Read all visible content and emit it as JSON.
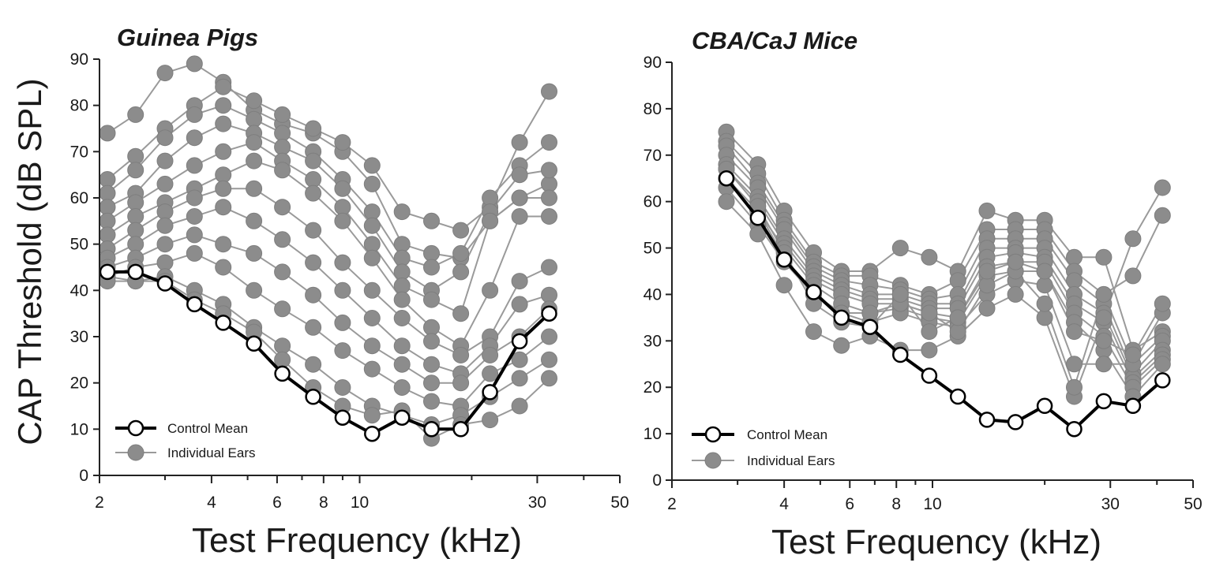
{
  "chart_data": [
    {
      "type": "line",
      "title": "Guinea Pigs",
      "xlabel": "Test Frequency (kHz)",
      "ylabel": "CAP Threshold (dB SPL)",
      "x_scale": "log",
      "xlim": [
        2,
        50
      ],
      "ylim": [
        0,
        90
      ],
      "xticks": [
        2,
        4,
        6,
        8,
        10,
        30,
        50
      ],
      "yticks": [
        0,
        10,
        20,
        30,
        40,
        50,
        60,
        70,
        80,
        90
      ],
      "grid": false,
      "legend_position": "bottom-left",
      "colors": {
        "mean": "#000000",
        "individual": "#8c8c8c",
        "individual_line": "#9a9a9a"
      },
      "legend": [
        {
          "label": "Control Mean",
          "series": "mean"
        },
        {
          "label": "Individual Ears",
          "series": "individual"
        }
      ],
      "x": [
        2.1,
        2.5,
        3.0,
        3.6,
        4.3,
        5.2,
        6.2,
        7.5,
        9.0,
        10.8,
        13.0,
        15.6,
        18.7,
        22.4,
        26.9,
        32.3
      ],
      "series": [
        {
          "id": "mean",
          "values": [
            44,
            44,
            41.5,
            37,
            33,
            28.5,
            22,
            17,
            12.5,
            9,
            12.5,
            10,
            10,
            18,
            29,
            35
          ]
        },
        {
          "id": "ind1",
          "values": [
            74,
            78,
            87,
            89,
            85,
            79,
            76,
            74,
            70,
            63,
            50,
            48,
            47,
            55,
            60,
            63
          ]
        },
        {
          "id": "ind2",
          "values": [
            64,
            69,
            75,
            80,
            84,
            81,
            78,
            75,
            72,
            67,
            57,
            55,
            53,
            58,
            72,
            83
          ]
        },
        {
          "id": "ind3",
          "values": [
            61,
            66,
            73,
            78,
            80,
            77,
            74,
            70,
            64,
            57,
            47,
            45,
            48,
            60,
            67,
            72
          ]
        },
        {
          "id": "ind4",
          "values": [
            58,
            61,
            68,
            73,
            76,
            74,
            71,
            68,
            62,
            54,
            44,
            40,
            44,
            57,
            65,
            66
          ]
        },
        {
          "id": "ind5",
          "values": [
            55,
            59,
            63,
            67,
            70,
            72,
            68,
            64,
            58,
            50,
            41,
            38,
            35,
            55,
            60,
            60
          ]
        },
        {
          "id": "ind6",
          "values": [
            52,
            56,
            59,
            62,
            65,
            68,
            66,
            61,
            55,
            47,
            38,
            32,
            28,
            40,
            56,
            56
          ]
        },
        {
          "id": "ind7",
          "values": [
            49,
            53,
            57,
            60,
            62,
            62,
            58,
            53,
            46,
            40,
            34,
            29,
            26,
            30,
            42,
            45
          ]
        },
        {
          "id": "ind8",
          "values": [
            47,
            50,
            54,
            56,
            58,
            55,
            51,
            46,
            40,
            34,
            28,
            24,
            22,
            28,
            37,
            39
          ]
        },
        {
          "id": "ind9",
          "values": [
            45,
            47,
            50,
            52,
            50,
            48,
            44,
            39,
            33,
            28,
            24,
            20,
            20,
            26,
            30,
            36
          ]
        },
        {
          "id": "ind10",
          "values": [
            43,
            45,
            46,
            48,
            45,
            40,
            36,
            32,
            27,
            23,
            19,
            16,
            15,
            22,
            25,
            30
          ]
        },
        {
          "id": "ind11",
          "values": [
            43,
            42,
            43,
            40,
            37,
            32,
            28,
            24,
            19,
            15,
            13,
            11,
            13,
            17,
            21,
            25
          ]
        },
        {
          "id": "ind12",
          "values": [
            42,
            42,
            42,
            38,
            35,
            31,
            25,
            19,
            15,
            13,
            14,
            8,
            11,
            12,
            15,
            21
          ]
        }
      ]
    },
    {
      "type": "line",
      "title": "CBA/CaJ Mice",
      "xlabel": "Test Frequency (kHz)",
      "ylabel": "",
      "x_scale": "log",
      "xlim": [
        2,
        50
      ],
      "ylim": [
        0,
        90
      ],
      "xticks": [
        2,
        4,
        6,
        8,
        10,
        30,
        50
      ],
      "yticks": [
        0,
        10,
        20,
        30,
        40,
        50,
        60,
        70,
        80,
        90
      ],
      "grid": false,
      "legend_position": "bottom-left",
      "colors": {
        "mean": "#000000",
        "individual": "#8c8c8c",
        "individual_line": "#9a9a9a"
      },
      "legend": [
        {
          "label": "Control Mean",
          "series": "mean"
        },
        {
          "label": "Individual Ears",
          "series": "individual"
        }
      ],
      "x": [
        2.8,
        3.4,
        4.0,
        4.8,
        5.7,
        6.8,
        8.2,
        9.8,
        11.7,
        14.0,
        16.7,
        20.0,
        24.0,
        28.8,
        34.5,
        41.4
      ],
      "series": [
        {
          "id": "mean",
          "values": [
            65,
            56.5,
            47.5,
            40.5,
            35,
            33,
            27,
            22.5,
            18,
            13,
            12.5,
            16,
            11,
            17,
            16,
            21.5
          ]
        },
        {
          "id": "ind1",
          "values": [
            75,
            68,
            58,
            49,
            45,
            45,
            50,
            48,
            45,
            58,
            56,
            56,
            48,
            48,
            28,
            32
          ]
        },
        {
          "id": "ind2",
          "values": [
            73,
            66,
            56,
            47,
            44,
            44,
            42,
            40,
            43,
            54,
            54,
            54,
            45,
            40,
            25,
            31
          ]
        },
        {
          "id": "ind3",
          "values": [
            72,
            64,
            55,
            46,
            43,
            42,
            41,
            39,
            40,
            52,
            52,
            52,
            43,
            38,
            23,
            30
          ]
        },
        {
          "id": "ind4",
          "values": [
            70,
            63,
            54,
            45,
            42,
            40,
            40,
            38,
            38,
            50,
            50,
            50,
            40,
            36,
            22,
            28
          ]
        },
        {
          "id": "ind5",
          "values": [
            68,
            61,
            52,
            44,
            41,
            39,
            39,
            37,
            37,
            48,
            49,
            48,
            38,
            34,
            21,
            27
          ]
        },
        {
          "id": "ind6",
          "values": [
            67,
            60,
            51,
            43,
            40,
            38,
            38,
            36,
            35,
            46,
            47,
            47,
            36,
            31,
            20,
            26
          ]
        },
        {
          "id": "ind7",
          "values": [
            65,
            58,
            50,
            42,
            38,
            36,
            37,
            35,
            34,
            44,
            45,
            45,
            34,
            28,
            18,
            25
          ]
        },
        {
          "id": "ind8",
          "values": [
            63,
            55,
            47,
            40,
            36,
            34,
            36,
            34,
            33,
            40,
            43,
            42,
            25,
            25,
            25,
            36
          ]
        },
        {
          "id": "ind9",
          "values": [
            60,
            53,
            42,
            32,
            29,
            31,
            28,
            28,
            31,
            37,
            40,
            35,
            18,
            35,
            52,
            63
          ]
        },
        {
          "id": "ind10",
          "values": [
            65,
            58,
            48,
            40,
            36,
            36,
            38,
            36,
            32,
            42,
            45,
            38,
            20,
            40,
            44,
            57
          ]
        },
        {
          "id": "ind11",
          "values": [
            67,
            59,
            49,
            38,
            34,
            33,
            40,
            32,
            35,
            45,
            47,
            45,
            32,
            30,
            27,
            38
          ]
        }
      ]
    }
  ]
}
